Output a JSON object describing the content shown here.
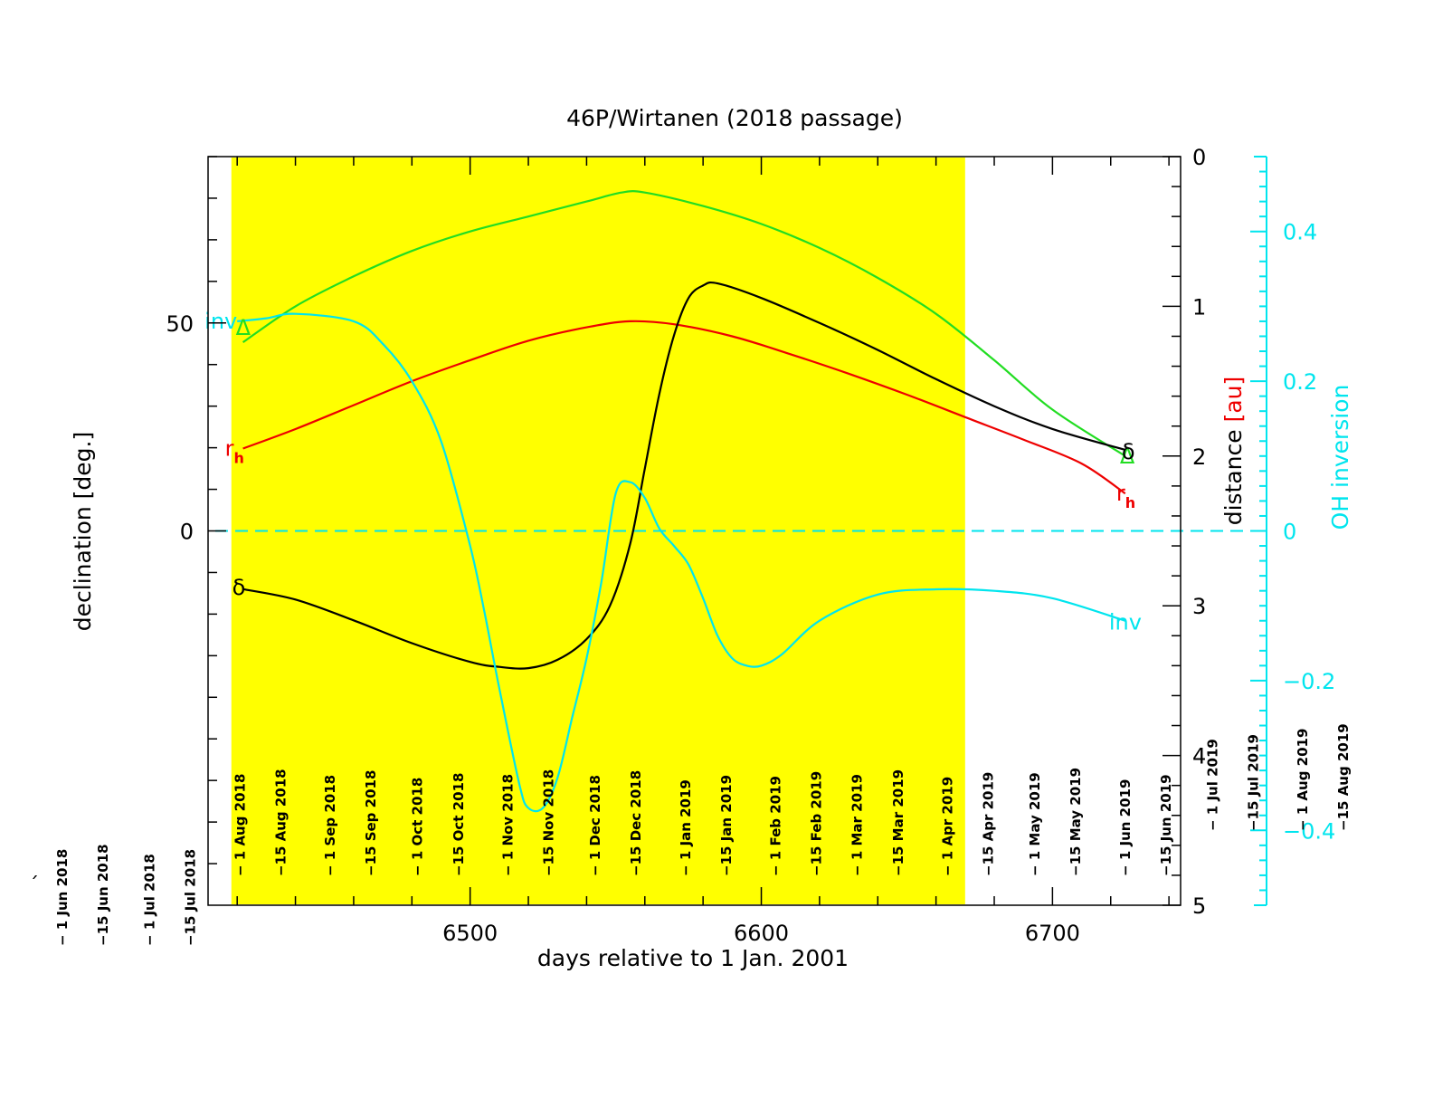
{
  "chart_data": {
    "type": "line",
    "title": "46P/Wirtanen (2018 passage)",
    "xlabel": "days relative to 1 Jan. 2001",
    "ylabel_left": "declination [deg.]",
    "ylabel_right_prefix": "distance ",
    "ylabel_right_unit": "[au]",
    "ylabel_far_right": "OH inversion",
    "stray_mark": "´",
    "xlim": [
      6410,
      6744
    ],
    "x_ticks": [
      6500,
      6600,
      6700
    ],
    "ylim_left": [
      -90,
      90
    ],
    "y_ticks_left": [
      0,
      50
    ],
    "ylim_right": [
      5,
      0
    ],
    "y_ticks_right": [
      0,
      1,
      2,
      3,
      4,
      5
    ],
    "ylim_far_right": [
      -0.5,
      0.5
    ],
    "y_ticks_far_right": [
      -0.4,
      -0.2,
      0,
      0.2,
      0.4
    ],
    "y_tick_labels_far_right": [
      "−0.4",
      "−0.2",
      "0",
      "0.2",
      "0.4"
    ],
    "zero_line_far_right": 0,
    "observable_window": {
      "x_start": 6418,
      "x_end": 6670,
      "color": "#ffff00"
    },
    "series": [
      {
        "name": "Δ",
        "axis": "right",
        "color": "#22dd22",
        "label_start": "Δ",
        "label_end": "Δ",
        "x": [
          6422,
          6440,
          6460,
          6480,
          6500,
          6520,
          6540,
          6552,
          6560,
          6580,
          6600,
          6620,
          6640,
          6660,
          6680,
          6700,
          6725
        ],
        "y": [
          1.24,
          1.0,
          0.8,
          0.63,
          0.5,
          0.4,
          0.3,
          0.24,
          0.24,
          0.33,
          0.45,
          0.61,
          0.81,
          1.05,
          1.36,
          1.69,
          2.0
        ]
      },
      {
        "name": "r",
        "subscript": "h",
        "axis": "right",
        "color": "#ee0000",
        "label_start": "r",
        "label_end": "r",
        "x": [
          6422,
          6440,
          6460,
          6480,
          6500,
          6520,
          6540,
          6555,
          6570,
          6590,
          6610,
          6630,
          6650,
          6670,
          6690,
          6710,
          6725
        ],
        "y": [
          1.95,
          1.82,
          1.66,
          1.5,
          1.36,
          1.23,
          1.14,
          1.1,
          1.12,
          1.2,
          1.32,
          1.45,
          1.59,
          1.74,
          1.89,
          2.05,
          2.25
        ]
      },
      {
        "name": "δ",
        "axis": "left",
        "color": "#000000",
        "label_start": "δ",
        "label_end": "δ",
        "x": [
          6422,
          6440,
          6460,
          6480,
          6500,
          6510,
          6520,
          6530,
          6540,
          6548,
          6555,
          6560,
          6565,
          6570,
          6575,
          6580,
          6585,
          6600,
          6620,
          6640,
          6660,
          6680,
          6700,
          6725
        ],
        "y": [
          -14,
          -16.5,
          -21.5,
          -27,
          -31.5,
          -32.7,
          -33,
          -31,
          -26,
          -18,
          -3,
          15,
          33,
          47,
          56,
          59,
          59.5,
          56,
          50,
          43.5,
          36.5,
          30,
          24.5,
          19.5
        ]
      },
      {
        "name": "inv",
        "axis": "far_right",
        "color": "#00e5ee",
        "label_start": "inv",
        "label_end": "inv",
        "x": [
          6420,
          6430,
          6440,
          6460,
          6470,
          6480,
          6490,
          6500,
          6505,
          6510,
          6517,
          6520,
          6525,
          6530,
          6535,
          6540,
          6545,
          6550,
          6555,
          6560,
          6565,
          6570,
          6575,
          6580,
          6585,
          6590,
          6595,
          6600,
          6607,
          6620,
          6640,
          6660,
          6680,
          6700,
          6725
        ],
        "y": [
          0.28,
          0.284,
          0.29,
          0.28,
          0.25,
          0.2,
          0.12,
          -0.02,
          -0.11,
          -0.21,
          -0.34,
          -0.37,
          -0.37,
          -0.33,
          -0.25,
          -0.17,
          -0.07,
          0.05,
          0.065,
          0.044,
          0.003,
          -0.02,
          -0.045,
          -0.09,
          -0.14,
          -0.17,
          -0.18,
          -0.18,
          -0.165,
          -0.12,
          -0.085,
          -0.078,
          -0.08,
          -0.09,
          -0.12
        ]
      }
    ],
    "date_ticks": [
      {
        "label": "− 1 Jun 2018",
        "x": 6360
      },
      {
        "label": "−15 Jun 2018",
        "x": 6374
      },
      {
        "label": "− 1 Jul 2018",
        "x": 6390
      },
      {
        "label": "−15 Jul 2018",
        "x": 6404
      },
      {
        "label": "− 1 Aug 2018",
        "x": 6421
      },
      {
        "label": "−15 Aug 2018",
        "x": 6435
      },
      {
        "label": "− 1 Sep 2018",
        "x": 6452
      },
      {
        "label": "−15 Sep 2018",
        "x": 6466
      },
      {
        "label": "− 1 Oct 2018",
        "x": 6482
      },
      {
        "label": "−15 Oct 2018",
        "x": 6496
      },
      {
        "label": "− 1 Nov 2018",
        "x": 6513
      },
      {
        "label": "−15 Nov 2018",
        "x": 6527
      },
      {
        "label": "− 1 Dec 2018",
        "x": 6543
      },
      {
        "label": "−15 Dec 2018",
        "x": 6557
      },
      {
        "label": "− 1 Jan 2019",
        "x": 6574
      },
      {
        "label": "−15 Jan 2019",
        "x": 6588
      },
      {
        "label": "− 1 Feb 2019",
        "x": 6605
      },
      {
        "label": "−15 Feb 2019",
        "x": 6619
      },
      {
        "label": "− 1 Mar 2019",
        "x": 6633
      },
      {
        "label": "−15 Mar 2019",
        "x": 6647
      },
      {
        "label": "− 1 Apr 2019",
        "x": 6664
      },
      {
        "label": "−15 Apr 2019",
        "x": 6678
      },
      {
        "label": "− 1 May 2019",
        "x": 6694
      },
      {
        "label": "−15 May 2019",
        "x": 6708
      },
      {
        "label": "− 1 Jun 2019",
        "x": 6725
      },
      {
        "label": "−15 Jun 2019",
        "x": 6739
      },
      {
        "label": "− 1 Jul 2019",
        "x": 6755
      },
      {
        "label": "−15 Jul 2019",
        "x": 6769
      },
      {
        "label": "− 1 Aug 2019",
        "x": 6786
      },
      {
        "label": "−15 Aug 2019",
        "x": 6800
      }
    ]
  }
}
